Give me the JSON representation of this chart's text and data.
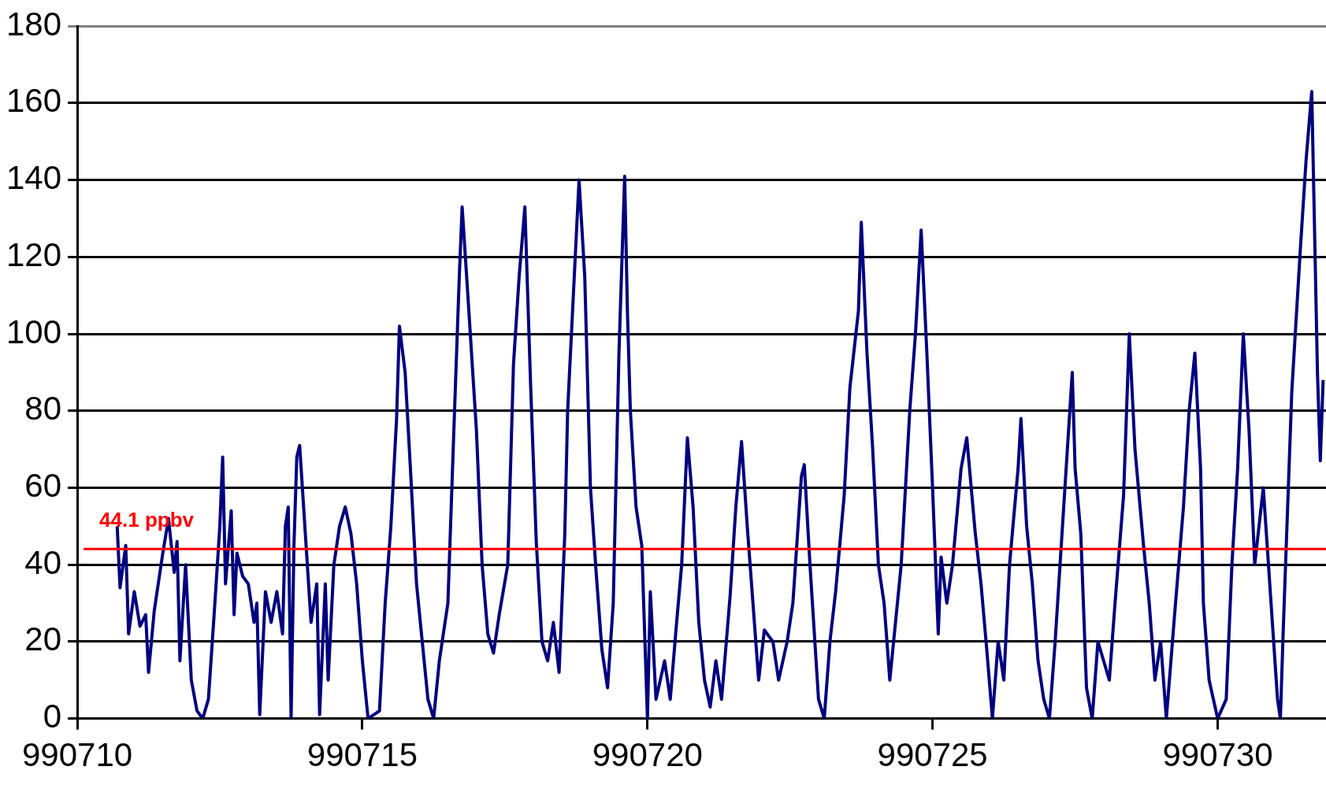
{
  "chart_data": {
    "type": "line",
    "xlim": [
      990710,
      990731.9
    ],
    "ylim": [
      0,
      180
    ],
    "xticks": [
      990710,
      990715,
      990720,
      990725,
      990730
    ],
    "yticks": [
      0,
      20,
      40,
      60,
      80,
      100,
      120,
      140,
      160,
      180
    ],
    "grid": "y",
    "legend": false,
    "marker": "none",
    "line_style": "solid",
    "ref_lines": [
      {
        "axis": "y",
        "value": 44.1,
        "label": "44.1 ppbv",
        "color": "#ff0000"
      }
    ],
    "series": [
      {
        "color": "#000080",
        "x": [
          990710.7,
          990710.75,
          990710.85,
          990710.9,
          990711.0,
          990711.1,
          990711.2,
          990711.25,
          990711.35,
          990711.5,
          990711.6,
          990711.7,
          990711.75,
          990711.8,
          990711.9,
          990712.0,
          990712.1,
          990712.2,
          990712.3,
          990712.4,
          990712.5,
          990712.55,
          990712.6,
          990712.7,
          990712.75,
          990712.8,
          990712.9,
          990713.0,
          990713.1,
          990713.15,
          990713.2,
          990713.3,
          990713.4,
          990713.5,
          990713.6,
          990713.65,
          990713.7,
          990713.75,
          990713.8,
          990713.85,
          990713.9,
          990714.0,
          990714.1,
          990714.2,
          990714.25,
          990714.35,
          990714.4,
          990714.5,
          990714.6,
          990714.7,
          990714.8,
          990714.9,
          990715.0,
          990715.1,
          990715.3,
          990715.4,
          990715.5,
          990715.6,
          990715.65,
          990715.75,
          990715.85,
          990715.95,
          990716.05,
          990716.15,
          990716.25,
          990716.35,
          990716.5,
          990716.6,
          990716.7,
          990716.75,
          990716.85,
          990717.0,
          990717.1,
          990717.2,
          990717.3,
          990717.4,
          990717.55,
          990717.65,
          990717.75,
          990717.85,
          990717.95,
          990718.05,
          990718.15,
          990718.25,
          990718.35,
          990718.45,
          990718.55,
          990718.6,
          990718.7,
          990718.8,
          990718.9,
          990719.0,
          990719.1,
          990719.2,
          990719.3,
          990719.4,
          990719.5,
          990719.6,
          990719.65,
          990719.7,
          990719.8,
          990719.9,
          990720.0,
          990720.05,
          990720.15,
          990720.3,
          990720.4,
          990720.5,
          990720.6,
          990720.7,
          990720.8,
          990720.9,
          990721.0,
          990721.1,
          990721.2,
          990721.3,
          990721.45,
          990721.55,
          990721.65,
          990721.75,
          990721.85,
          990721.95,
          990722.05,
          990722.2,
          990722.3,
          990722.45,
          990722.55,
          990722.7,
          990722.75,
          990722.85,
          990723.0,
          990723.1,
          990723.2,
          990723.3,
          990723.45,
          990723.55,
          990723.7,
          990723.75,
          990723.85,
          990723.95,
          990724.05,
          990724.15,
          990724.25,
          990724.35,
          990724.45,
          990724.6,
          990724.7,
          990724.8,
          990724.9,
          990725.0,
          990725.1,
          990725.15,
          990725.25,
          990725.35,
          990725.5,
          990725.6,
          990725.75,
          990725.85,
          990725.95,
          990726.05,
          990726.15,
          990726.25,
          990726.35,
          990726.5,
          990726.55,
          990726.65,
          990726.75,
          990726.85,
          990726.95,
          990727.05,
          990727.15,
          990727.3,
          990727.45,
          990727.5,
          990727.6,
          990727.7,
          990727.8,
          990727.9,
          990728.1,
          990728.2,
          990728.35,
          990728.45,
          990728.55,
          990728.7,
          990728.8,
          990728.9,
          990729.0,
          990729.1,
          990729.25,
          990729.4,
          990729.5,
          990729.6,
          990729.7,
          990729.75,
          990729.85,
          990730.0,
          990730.15,
          990730.25,
          990730.35,
          990730.45,
          990730.55,
          990730.65,
          990730.8,
          990730.9,
          990731.05,
          990731.1,
          990731.15,
          990731.3,
          990731.45,
          990731.55,
          990731.65,
          990731.75,
          990731.8,
          990731.85
        ],
        "values": [
          50,
          34,
          45,
          22,
          33,
          24,
          27,
          12,
          28,
          43,
          52,
          38,
          46,
          15,
          40,
          10,
          2,
          0,
          5,
          27,
          50,
          68,
          35,
          54,
          27,
          43,
          37,
          35,
          25,
          30,
          1,
          33,
          25,
          33,
          22,
          50,
          55,
          0,
          45,
          68,
          71,
          48,
          25,
          35,
          1,
          35,
          10,
          40,
          50,
          55,
          48,
          35,
          15,
          0,
          2,
          30,
          50,
          78,
          102,
          90,
          63,
          35,
          20,
          5,
          0,
          15,
          30,
          73,
          115,
          133,
          110,
          75,
          40,
          22,
          17,
          27,
          40,
          92,
          115,
          133,
          87,
          46,
          20,
          15,
          25,
          12,
          48,
          80,
          110,
          140,
          115,
          60,
          38,
          18,
          8,
          30,
          95,
          141,
          105,
          80,
          55,
          45,
          0,
          33,
          5,
          15,
          5,
          23,
          40,
          73,
          55,
          25,
          10,
          3,
          15,
          5,
          32,
          55,
          72,
          50,
          30,
          10,
          23,
          20,
          10,
          20,
          30,
          63,
          66,
          40,
          5,
          0,
          20,
          33,
          58,
          86,
          106,
          129,
          95,
          70,
          40,
          30,
          10,
          25,
          40,
          80,
          100,
          127,
          95,
          60,
          22,
          42,
          30,
          40,
          65,
          73,
          48,
          35,
          18,
          0,
          20,
          10,
          40,
          65,
          78,
          50,
          35,
          15,
          5,
          0,
          20,
          55,
          90,
          65,
          48,
          8,
          0,
          20,
          10,
          30,
          58,
          100,
          70,
          45,
          30,
          10,
          20,
          0,
          28,
          55,
          80,
          95,
          65,
          30,
          10,
          0,
          5,
          40,
          65,
          100,
          75,
          40,
          60,
          38,
          5,
          0,
          23,
          85,
          122,
          145,
          163,
          90,
          67,
          88
        ]
      }
    ]
  }
}
